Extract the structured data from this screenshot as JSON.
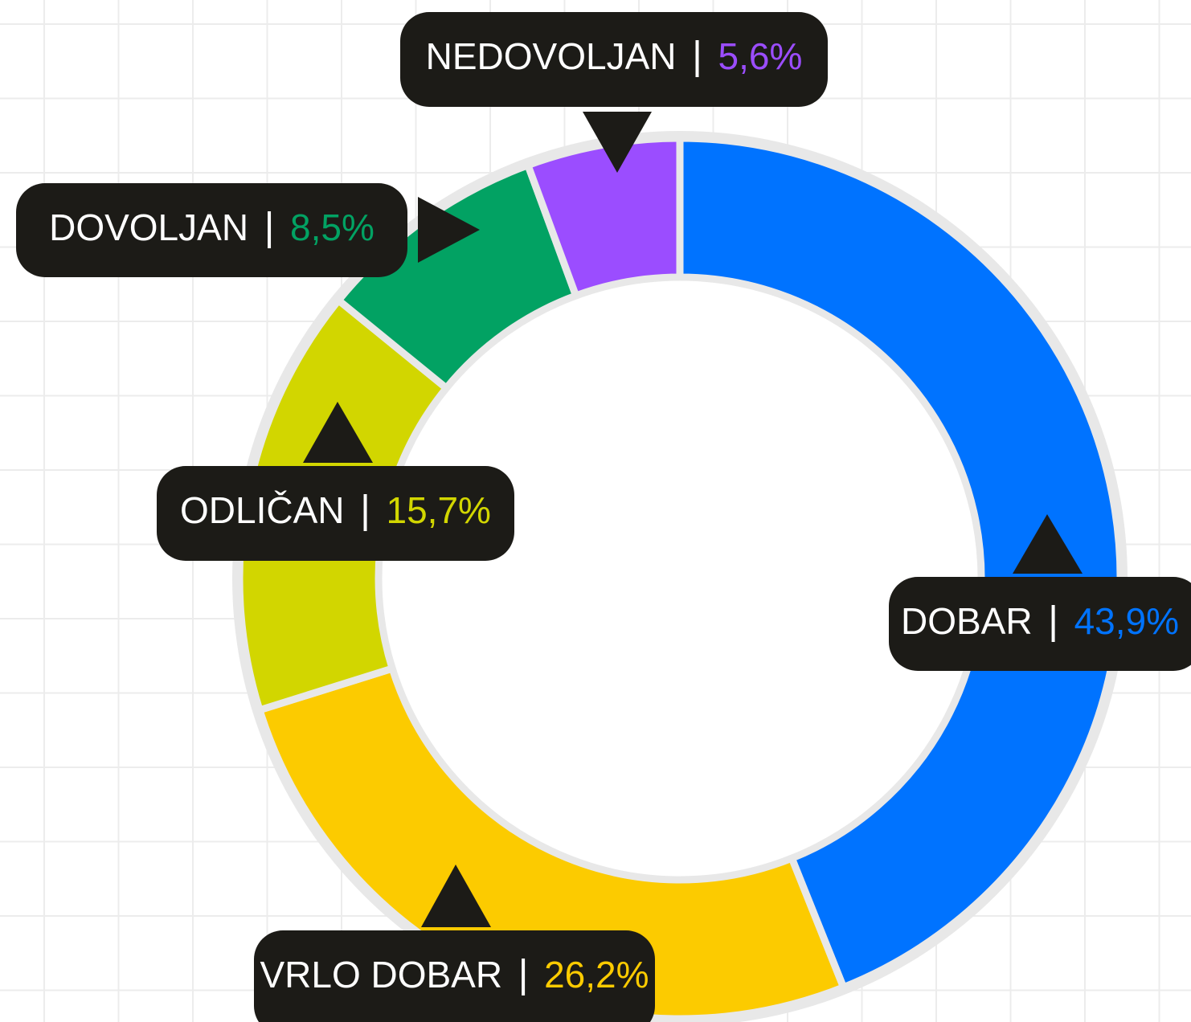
{
  "chart_data": {
    "type": "donut",
    "categories": [
      "DOBAR",
      "VRLO DOBAR",
      "ODLIČAN",
      "DOVOLJAN",
      "NEDOVOLJAN"
    ],
    "values": [
      43.9,
      26.2,
      15.7,
      8.5,
      5.6
    ],
    "value_labels": [
      "43,9%",
      "26,2%",
      "15,7%",
      "8,5%",
      "5,6%"
    ],
    "colors": [
      "#0073ff",
      "#fccb00",
      "#d2d600",
      "#02a263",
      "#9b4dff"
    ]
  }
}
